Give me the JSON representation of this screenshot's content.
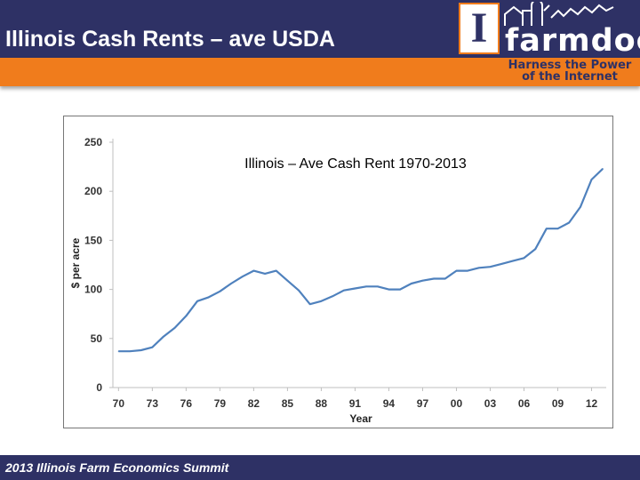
{
  "slide": {
    "title": "Illinois Cash Rents – ave USDA",
    "footer": "2013 Illinois Farm Economics Summit",
    "colors": {
      "header": "#2e3165",
      "accent": "#f07c1c",
      "line": "#4f81bd"
    }
  },
  "logo": {
    "letter": "I",
    "word": "farmdoc",
    "tagline_line1": "Harness the Power",
    "tagline_line2": "of the Internet",
    "icon": "illinois-block-i-icon"
  },
  "chart_data": {
    "type": "line",
    "title": "Illinois – Ave Cash Rent 1970-2013",
    "xlabel": "Year",
    "ylabel": "$ per acre",
    "ylim": [
      0,
      250
    ],
    "yticks": [
      "0",
      "50",
      "100",
      "150",
      "200",
      "250"
    ],
    "xticks": [
      "70",
      "73",
      "76",
      "79",
      "82",
      "85",
      "88",
      "91",
      "94",
      "97",
      "00",
      "03",
      "06",
      "09",
      "12"
    ],
    "xtick_years": [
      1970,
      1973,
      1976,
      1979,
      1982,
      1985,
      1988,
      1991,
      1994,
      1997,
      2000,
      2003,
      2006,
      2009,
      2012
    ],
    "grid": false,
    "legend": "none",
    "series": [
      {
        "x": [
          1970,
          1971,
          1972,
          1973,
          1974,
          1975,
          1976,
          1977,
          1978,
          1979,
          1980,
          1981,
          1982,
          1983,
          1984,
          1985,
          1986,
          1987,
          1988,
          1989,
          1990,
          1991,
          1992,
          1993,
          1994,
          1995,
          1996,
          1997,
          1998,
          1999,
          2000,
          2001,
          2002,
          2003,
          2004,
          2005,
          2006,
          2007,
          2008,
          2009,
          2010,
          2011,
          2012,
          2013
        ],
        "values": [
          37,
          37,
          38,
          41,
          52,
          61,
          73,
          88,
          92,
          98,
          106,
          113,
          119,
          116,
          119,
          109,
          99,
          85,
          88,
          93,
          99,
          101,
          103,
          103,
          100,
          100,
          106,
          109,
          111,
          111,
          119,
          119,
          122,
          123,
          126,
          129,
          132,
          141,
          162,
          162,
          168,
          184,
          212,
          223
        ]
      }
    ]
  }
}
